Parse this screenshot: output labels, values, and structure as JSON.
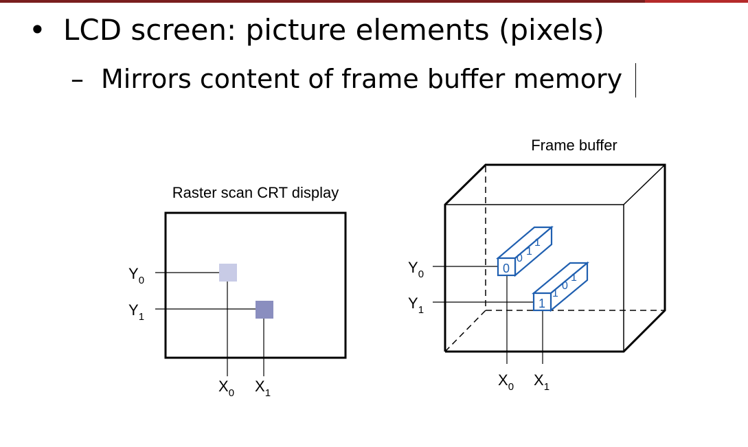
{
  "slide": {
    "bullet_symbol": "•",
    "bullet_text": "LCD screen: picture elements (pixels)",
    "sub_dash": "–",
    "sub_text": "Mirrors content of frame buffer memory"
  },
  "crt": {
    "title": "Raster scan CRT display",
    "y0": "Y",
    "y0_sub": "0",
    "y1": "Y",
    "y1_sub": "1",
    "x0": "X",
    "x0_sub": "0",
    "x1": "X",
    "x1_sub": "1",
    "pixel0_color": "#c8cbe6",
    "pixel1_color": "#8a8ebf"
  },
  "frame_buffer": {
    "title": "Frame buffer",
    "y0": "Y",
    "y0_sub": "0",
    "y1": "Y",
    "y1_sub": "1",
    "x0": "X",
    "x0_sub": "0",
    "x1": "X",
    "x1_sub": "1",
    "cell0_front": "0",
    "cell0_bits_a": "0",
    "cell0_bits_b": "1",
    "cell0_bits_c": "1",
    "cell1_front": "1",
    "cell1_bits_a": "1",
    "cell1_bits_b": "0",
    "cell1_bits_c": "1",
    "cell_color": "#1f5fb0"
  },
  "colors": {
    "header_bar": "#7a1f1f",
    "header_accent": "#b52a2a"
  }
}
